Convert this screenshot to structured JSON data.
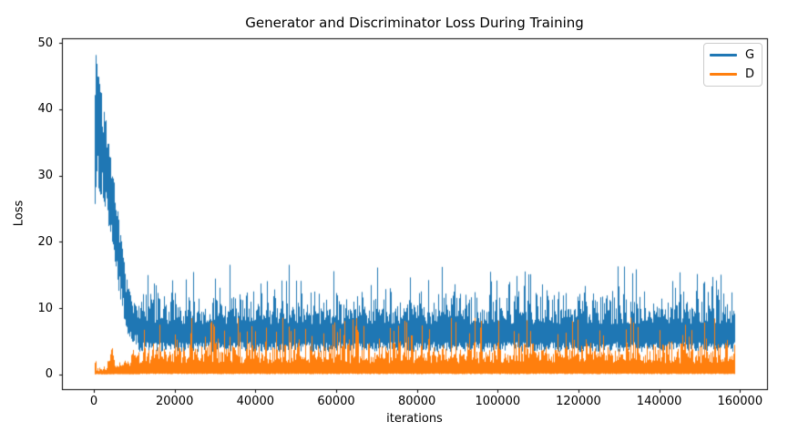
{
  "figure": {
    "background": "#ffffff",
    "text_color": "#000000",
    "spine_color": "#000000",
    "legend_border_color": "#cccccc"
  },
  "chart_data": {
    "type": "line",
    "title": "Generator and Discriminator Loss During Training",
    "xlabel": "iterations",
    "ylabel": "Loss",
    "xlim": [
      -7900,
      166700
    ],
    "ylim": [
      -2.2,
      50.7
    ],
    "xticks": [
      0,
      20000,
      40000,
      60000,
      80000,
      100000,
      120000,
      140000,
      160000
    ],
    "yticks": [
      0,
      10,
      20,
      30,
      40,
      50
    ],
    "grid": false,
    "legend": {
      "position": "upper right",
      "entries": [
        "G",
        "D"
      ]
    },
    "series": [
      {
        "name": "G",
        "color": "#1f77b4",
        "style": "dense noisy line",
        "x_range": [
          0,
          158800
        ],
        "peak": {
          "x": 500,
          "y": 48.4
        },
        "envelope": [
          [
            0,
            22,
            44
          ],
          [
            400,
            27,
            48.4
          ],
          [
            900,
            28,
            46
          ],
          [
            1600,
            27,
            43
          ],
          [
            2400,
            26,
            41
          ],
          [
            3200,
            24,
            37
          ],
          [
            4200,
            20,
            32
          ],
          [
            5200,
            16,
            28
          ],
          [
            6200,
            12,
            23
          ],
          [
            7200,
            9,
            18
          ],
          [
            8200,
            6.3,
            14
          ],
          [
            9200,
            5,
            11.5
          ],
          [
            10500,
            4.4,
            10.2
          ],
          [
            12000,
            3.9,
            10
          ],
          [
            158800,
            3.8,
            10
          ]
        ],
        "steady_band": [
          3.4,
          10.2
        ],
        "spike_max": 16.6
      },
      {
        "name": "D",
        "color": "#ff7f0e",
        "style": "dense noisy line",
        "x_range": [
          0,
          158800
        ],
        "envelope": [
          [
            0,
            0.02,
            0.8
          ],
          [
            300,
            0.05,
            3.2
          ],
          [
            700,
            0.02,
            1.0
          ],
          [
            3000,
            0.02,
            1.3
          ],
          [
            4500,
            0.08,
            5.0
          ],
          [
            5500,
            0.05,
            1.8
          ],
          [
            8800,
            0.1,
            2.6
          ],
          [
            9400,
            0.15,
            5.4
          ],
          [
            10200,
            0.1,
            3.4
          ],
          [
            11000,
            0.05,
            2.8
          ],
          [
            158800,
            0.05,
            2.8
          ]
        ],
        "steady_band": [
          0.05,
          3.1
        ],
        "spike_max": 8.6
      }
    ]
  }
}
